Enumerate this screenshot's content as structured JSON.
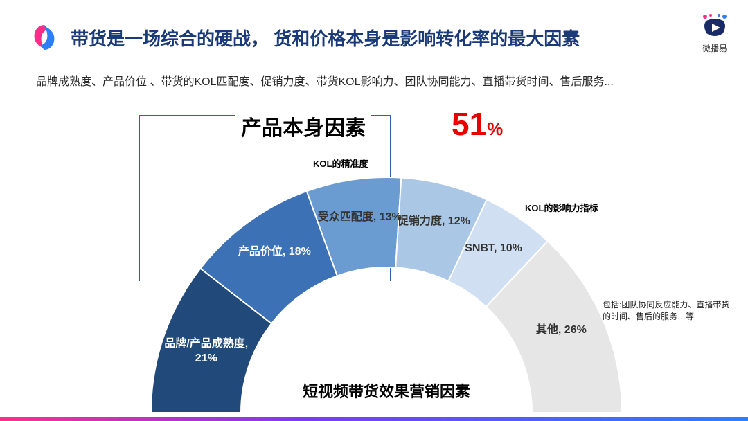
{
  "header": {
    "title": "带货是一场综合的硬战， 货和价格本身是影响转化率的最大因素",
    "subtitle": "品牌成熟度、产品价位 、带货的KOL匹配度、促销力度、带货KOL影响力、团队协同能力、直播带货时间、售后服务..."
  },
  "brand": {
    "name": "微播易"
  },
  "highlight": {
    "label": "产品本身因素",
    "value": "51",
    "pct": "%"
  },
  "chart": {
    "type": "half-donut",
    "caption": "短视频带货效果营销因素",
    "outer_radius": 340,
    "inner_radius": 210,
    "background_color": "#ffffff",
    "segments": [
      {
        "label": "品牌/产品成熟度, 21%",
        "value": 21,
        "color": "#214a7a",
        "text_color": "#ffffff"
      },
      {
        "label": "产品价位, 18%",
        "value": 18,
        "color": "#3c71b5",
        "text_color": "#ffffff"
      },
      {
        "label": "受众匹配度, 13%",
        "value": 13,
        "color": "#6a9cd2",
        "text_color": "#333333",
        "outside_label": "KOL的精准度"
      },
      {
        "label": "促销力度, 12%",
        "value": 12,
        "color": "#aac7e6",
        "text_color": "#333333"
      },
      {
        "label": "SNBT, 10%",
        "value": 10,
        "color": "#d0e0f2",
        "text_color": "#333333",
        "outside_label": "KOL的影响力指标"
      },
      {
        "label": "其他, 26%",
        "value": 26,
        "color": "#e6e6e6",
        "text_color": "#333333",
        "side_note": "包括:团队协同反应能力、直播带货的时间、售后的服务…等"
      }
    ]
  },
  "style": {
    "title_color": "#1a3a7a",
    "accent_red": "#e60000",
    "bracket_color": "#2f5fb7",
    "gradient": [
      "#ff2d8a",
      "#7b3af5",
      "#2d7dff"
    ]
  }
}
